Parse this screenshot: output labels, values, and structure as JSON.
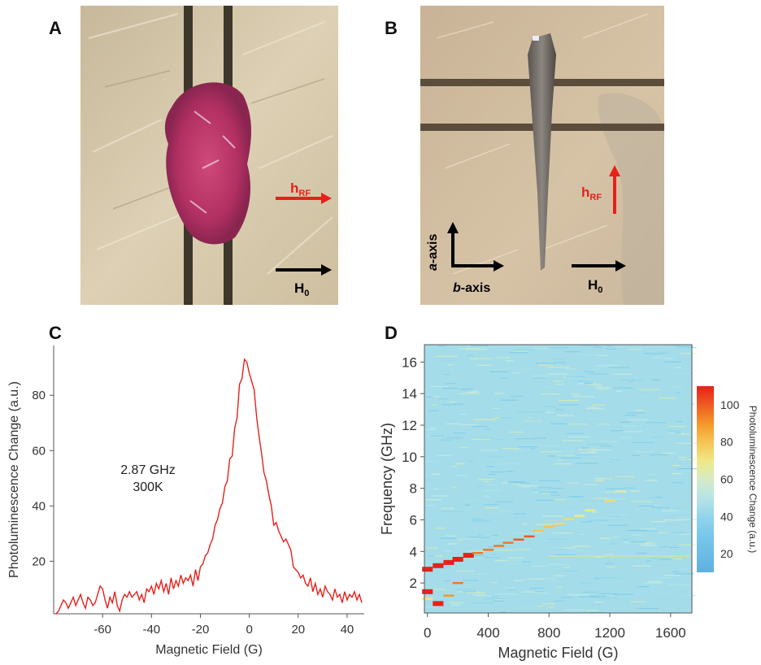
{
  "panels": {
    "a": {
      "letter": "A",
      "h_rf_label": "h",
      "h_rf_sub": "RF",
      "h0_label": "H",
      "h0_sub": "0",
      "colors": {
        "h_rf": "#e8201a",
        "h0": "#000000"
      }
    },
    "b": {
      "letter": "B",
      "a_axis_italic": "a",
      "a_axis_rest": "-axis",
      "b_axis_italic": "b",
      "b_axis_rest": "-axis",
      "h_rf_label": "h",
      "h_rf_sub": "RF",
      "h0_label": "H",
      "h0_sub": "0",
      "colors": {
        "h_rf": "#e8201a",
        "h0": "#000000"
      }
    },
    "c": {
      "letter": "C"
    },
    "d": {
      "letter": "D"
    }
  },
  "chart_data": [
    {
      "id": "C",
      "type": "line",
      "xlabel": "Magnetic Field (G)",
      "ylabel": "Photoluminescence Change (a.u.)",
      "xlim": [
        -80,
        47
      ],
      "ylim": [
        1,
        98
      ],
      "xticks": [
        -60,
        -40,
        -20,
        0,
        20,
        40
      ],
      "yticks": [
        20,
        40,
        60,
        80
      ],
      "annotation": [
        "2.87 GHz",
        "300K"
      ],
      "color": "#e8201a",
      "x": [
        -79,
        -78,
        -77,
        -76,
        -75,
        -74,
        -73,
        -72,
        -71,
        -70,
        -69,
        -68,
        -67,
        -66,
        -65,
        -64,
        -63,
        -62,
        -61,
        -60,
        -59,
        -58,
        -57,
        -56,
        -55,
        -54,
        -53,
        -52,
        -51,
        -50,
        -49,
        -48,
        -47,
        -46,
        -45,
        -44,
        -43,
        -42,
        -41,
        -40,
        -39,
        -38,
        -37,
        -36,
        -35,
        -34,
        -33,
        -32,
        -31,
        -30,
        -29,
        -28,
        -27,
        -26,
        -25,
        -24,
        -23,
        -22,
        -21,
        -20,
        -19,
        -18,
        -17,
        -16,
        -15,
        -14,
        -13,
        -12,
        -11,
        -10,
        -9,
        -8,
        -7,
        -6,
        -5,
        -4,
        -3,
        -2,
        -1,
        0,
        1,
        2,
        3,
        4,
        5,
        6,
        7,
        8,
        9,
        10,
        11,
        12,
        13,
        14,
        15,
        16,
        17,
        18,
        19,
        20,
        21,
        22,
        23,
        24,
        25,
        26,
        27,
        28,
        29,
        30,
        31,
        32,
        33,
        34,
        35,
        36,
        37,
        38,
        39,
        40,
        41,
        42,
        43,
        44,
        45,
        46
      ],
      "y": [
        1,
        2,
        4,
        6,
        5,
        3,
        5,
        7,
        4,
        6,
        8,
        5,
        3,
        7,
        6,
        4,
        5,
        8,
        11,
        10,
        6,
        3,
        7,
        5,
        9,
        4,
        2,
        6,
        8,
        7,
        9,
        7,
        8,
        9,
        6,
        8,
        5,
        10,
        9,
        11,
        8,
        12,
        10,
        13,
        9,
        12,
        8,
        14,
        10,
        13,
        11,
        15,
        12,
        14,
        13,
        15,
        11,
        17,
        13,
        18,
        19,
        22,
        23,
        26,
        28,
        33,
        35,
        39,
        41,
        47,
        49,
        57,
        58,
        68,
        72,
        84,
        86,
        93,
        92,
        88,
        85,
        82,
        72,
        65,
        59,
        52,
        49,
        44,
        40,
        33,
        34,
        31,
        29,
        27,
        28,
        26,
        24,
        18,
        17,
        16,
        14,
        15,
        12,
        11,
        14,
        9,
        12,
        8,
        10,
        7,
        11,
        9,
        8,
        6,
        10,
        7,
        8,
        5,
        9,
        6,
        8,
        7,
        9,
        6,
        8,
        5
      ]
    },
    {
      "id": "D",
      "type": "heatmap",
      "xlabel": "Magnetic Field (G)",
      "ylabel": "Frequency (GHz)",
      "xlim": [
        -20,
        1740
      ],
      "ylim": [
        0.1,
        17.1
      ],
      "xticks": [
        0,
        400,
        800,
        1200,
        1600
      ],
      "yticks": [
        2,
        4,
        6,
        8,
        10,
        12,
        14,
        16
      ],
      "colorbar_label": "Photoluminescence Change (a.u.)",
      "colorbar_range": [
        10,
        110
      ],
      "colorbar_ticks": [
        20,
        40,
        60,
        80,
        100
      ],
      "background_level": 45,
      "resonances": [
        {
          "field": 0,
          "freq": 2.87,
          "level": 110
        },
        {
          "field": 0,
          "freq": 1.45,
          "level": 110
        },
        {
          "field": 0,
          "freq": 1.0,
          "level": 70
        },
        {
          "field": 70,
          "freq": 3.1,
          "level": 110
        },
        {
          "field": 70,
          "freq": 0.7,
          "level": 110
        },
        {
          "field": 140,
          "freq": 3.3,
          "level": 110
        },
        {
          "field": 140,
          "freq": 1.2,
          "level": 90
        },
        {
          "field": 200,
          "freq": 3.5,
          "level": 110
        },
        {
          "field": 200,
          "freq": 2.0,
          "level": 95
        },
        {
          "field": 270,
          "freq": 3.75,
          "level": 110
        },
        {
          "field": 330,
          "freq": 3.9,
          "level": 95
        },
        {
          "field": 400,
          "freq": 4.1,
          "level": 95
        },
        {
          "field": 470,
          "freq": 4.35,
          "level": 95
        },
        {
          "field": 530,
          "freq": 4.55,
          "level": 95
        },
        {
          "field": 600,
          "freq": 4.75,
          "level": 100
        },
        {
          "field": 670,
          "freq": 4.95,
          "level": 100
        },
        {
          "field": 730,
          "freq": 5.3,
          "level": 80
        },
        {
          "field": 800,
          "freq": 5.55,
          "level": 80
        },
        {
          "field": 870,
          "freq": 5.75,
          "level": 75
        },
        {
          "field": 930,
          "freq": 6.05,
          "level": 75
        },
        {
          "field": 1000,
          "freq": 6.25,
          "level": 70
        },
        {
          "field": 1070,
          "freq": 6.6,
          "level": 70
        },
        {
          "field": 1200,
          "freq": 7.2,
          "level": 75
        },
        {
          "field": 1270,
          "freq": 7.8,
          "level": 65
        }
      ]
    }
  ]
}
